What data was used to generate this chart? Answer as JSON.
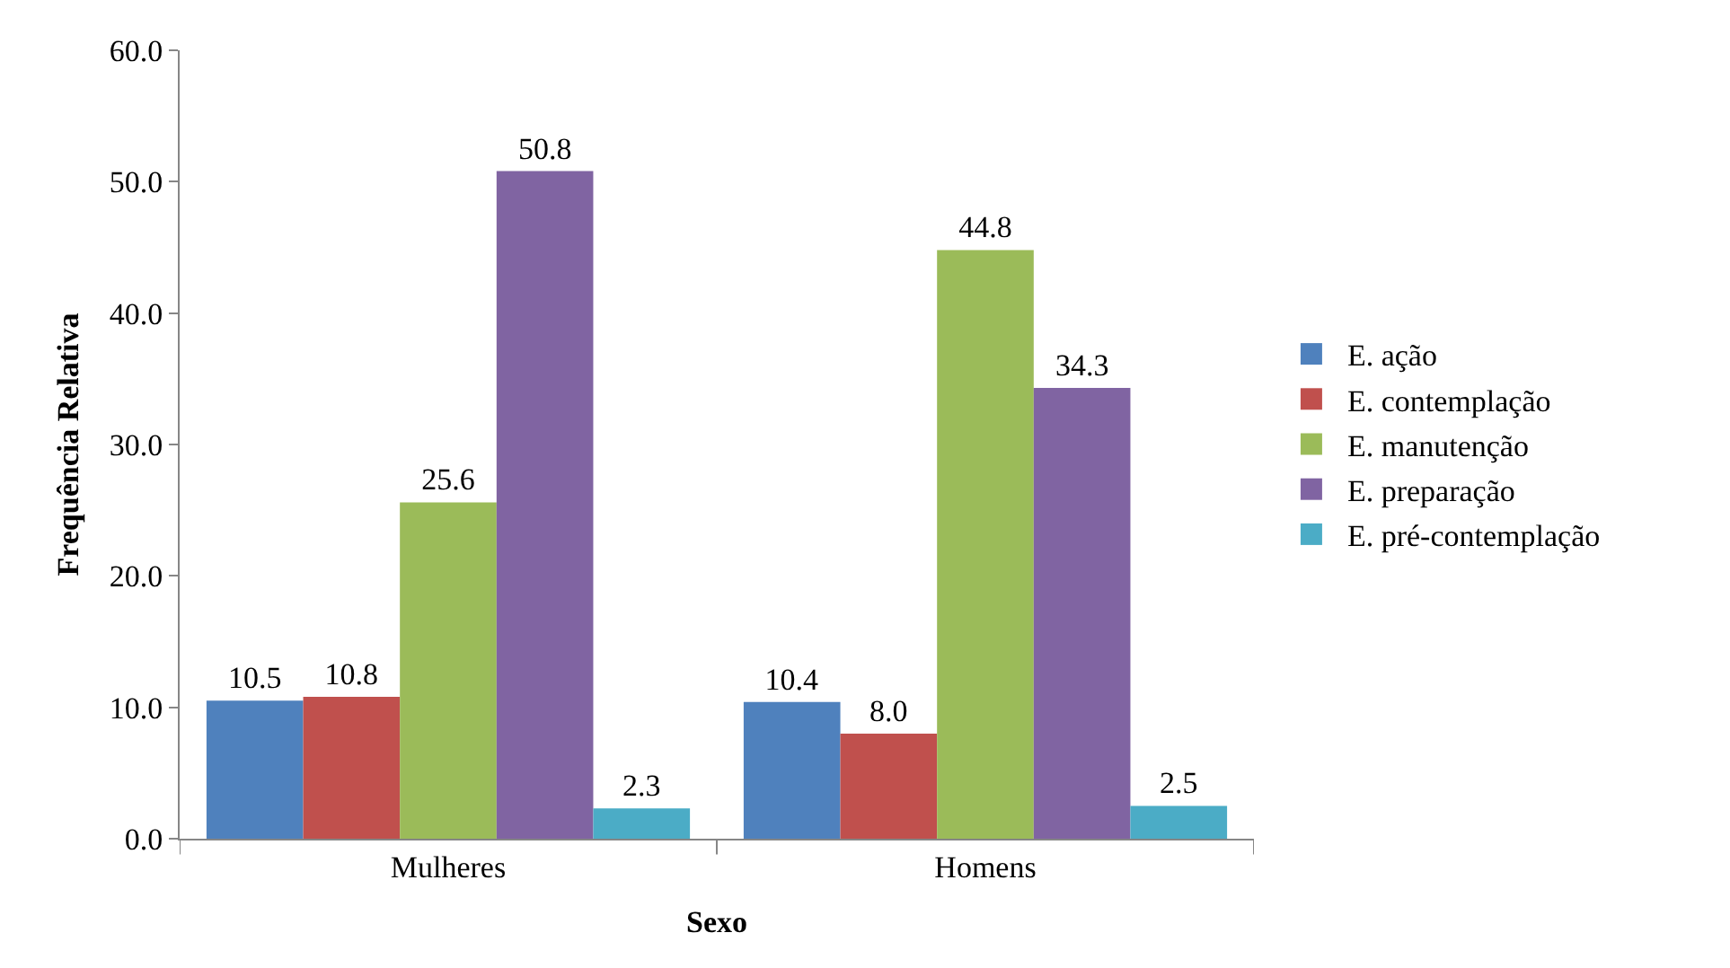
{
  "chart_data": {
    "type": "bar",
    "xlabel": "Sexo",
    "ylabel": "Frequência Relativa",
    "categories": [
      "Mulheres",
      "Homens"
    ],
    "series": [
      {
        "name": "E. ação",
        "color": "#4f81bd",
        "values": [
          10.5,
          10.4
        ],
        "value_labels": [
          "10.5",
          "10.4"
        ]
      },
      {
        "name": "E. contemplação",
        "color": "#c0504d",
        "values": [
          10.8,
          8.0
        ],
        "value_labels": [
          "10.8",
          "8.0"
        ]
      },
      {
        "name": "E. manutenção",
        "color": "#9bbb59",
        "values": [
          25.6,
          44.8
        ],
        "value_labels": [
          "25.6",
          "44.8"
        ]
      },
      {
        "name": "E. preparação",
        "color": "#8064a2",
        "values": [
          50.8,
          34.3
        ],
        "value_labels": [
          "50.8",
          "34.3"
        ]
      },
      {
        "name": "E. pré-contemplação",
        "color": "#4bacc6",
        "values": [
          2.3,
          2.5
        ],
        "value_labels": [
          "2.3",
          "2.5"
        ]
      }
    ],
    "ylim": [
      0,
      60
    ],
    "yticks": [
      {
        "value": 0,
        "label": "0.0"
      },
      {
        "value": 10,
        "label": "10.0"
      },
      {
        "value": 20,
        "label": "20.0"
      },
      {
        "value": 30,
        "label": "30.0"
      },
      {
        "value": 40,
        "label": "40.0"
      },
      {
        "value": 50,
        "label": "50.0"
      },
      {
        "value": 60,
        "label": "60.0"
      }
    ],
    "legend": "right",
    "grid": false
  }
}
